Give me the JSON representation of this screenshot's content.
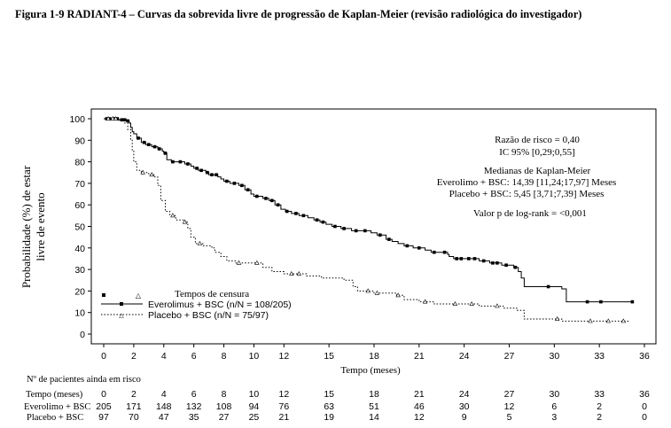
{
  "figure_title": "Figura 1-9 RADIANT-4 – Curvas da sobrevida livre de progressão de Kaplan-Meier (revisão radiológica do investigador)",
  "stats": {
    "hazard_ratio": "Razão de risco = 0,40",
    "ci": "IC 95% [0,29;0,55]",
    "medians_heading": "Medianas de Kaplan-Meier",
    "median_everolimus": "Everolimo + BSC: 14,39 [11,24;17,97] Meses",
    "median_placebo": "Placebo + BSC: 5,45 [3,71;7,39] Meses",
    "pvalue": "Valor p  de log-rank = <0,001"
  },
  "legend": {
    "censor_heading": "Tempos de censura",
    "everolimus": "Everolimus + BSC (n/N = 108/205)",
    "placebo": "Placebo + BSC (n/N = 75/97)"
  },
  "risk_table": {
    "heading": "Nº de pacientes ainda em risco",
    "time_label": "Tempo (meses)",
    "rows": [
      {
        "label": "Everolimo + BSC",
        "values": [
          "205",
          "171",
          "148",
          "132",
          "108",
          "94",
          "76",
          "63",
          "51",
          "46",
          "30",
          "12",
          "6",
          "2",
          "0"
        ]
      },
      {
        "label": "Placebo + BSC",
        "values": [
          "97",
          "70",
          "47",
          "35",
          "27",
          "25",
          "21",
          "19",
          "14",
          "12",
          "9",
          "5",
          "3",
          "2",
          "0"
        ]
      }
    ]
  },
  "chart_data": {
    "type": "line",
    "xlabel": "Tempo (meses)",
    "ylabel_line1": "Probabilidade (%) de estar",
    "ylabel_line2": "livre de evento",
    "xlim": [
      0,
      36
    ],
    "ylim": [
      0,
      100
    ],
    "x_ticks": [
      0,
      2,
      4,
      6,
      8,
      10,
      12,
      15,
      18,
      21,
      24,
      27,
      30,
      33,
      36
    ],
    "y_ticks": [
      0,
      10,
      20,
      30,
      40,
      50,
      60,
      70,
      80,
      90,
      100
    ],
    "series": [
      {
        "name": "Everolimus + BSC (n/N = 108/205)",
        "line_style": "solid",
        "color": "#000000",
        "points": [
          [
            0,
            100
          ],
          [
            0.6,
            100
          ],
          [
            1.0,
            99.5
          ],
          [
            1.5,
            99
          ],
          [
            1.7,
            98
          ],
          [
            1.8,
            96
          ],
          [
            1.9,
            94
          ],
          [
            2.0,
            93
          ],
          [
            2.2,
            91
          ],
          [
            2.5,
            89
          ],
          [
            2.8,
            88
          ],
          [
            3.2,
            87
          ],
          [
            3.6,
            86
          ],
          [
            3.9,
            85
          ],
          [
            4.0,
            84
          ],
          [
            4.2,
            81
          ],
          [
            4.5,
            80
          ],
          [
            5.0,
            80
          ],
          [
            5.4,
            79
          ],
          [
            5.8,
            78
          ],
          [
            6.0,
            77
          ],
          [
            6.3,
            76
          ],
          [
            6.8,
            75
          ],
          [
            7.0,
            74
          ],
          [
            7.6,
            73
          ],
          [
            7.8,
            72
          ],
          [
            8.0,
            71
          ],
          [
            8.4,
            70
          ],
          [
            9.0,
            69
          ],
          [
            9.4,
            67
          ],
          [
            9.8,
            65
          ],
          [
            10.0,
            64
          ],
          [
            10.6,
            63
          ],
          [
            11.0,
            62
          ],
          [
            11.4,
            60
          ],
          [
            11.8,
            58
          ],
          [
            12.1,
            57
          ],
          [
            12.5,
            56
          ],
          [
            13.0,
            55
          ],
          [
            13.6,
            54
          ],
          [
            14.0,
            53
          ],
          [
            14.4,
            52
          ],
          [
            14.8,
            51
          ],
          [
            15.2,
            50
          ],
          [
            15.8,
            49
          ],
          [
            16.5,
            48
          ],
          [
            17.2,
            48
          ],
          [
            17.8,
            47
          ],
          [
            18.2,
            46
          ],
          [
            18.8,
            44
          ],
          [
            19.2,
            43
          ],
          [
            19.6,
            42
          ],
          [
            20.0,
            41
          ],
          [
            20.6,
            40
          ],
          [
            21.4,
            39
          ],
          [
            21.8,
            38
          ],
          [
            22.5,
            38
          ],
          [
            22.9,
            37
          ],
          [
            23.0,
            36
          ],
          [
            23.3,
            35
          ],
          [
            24.0,
            35
          ],
          [
            25.0,
            34
          ],
          [
            25.7,
            33
          ],
          [
            26.5,
            32
          ],
          [
            27.3,
            31
          ],
          [
            27.6,
            29
          ],
          [
            27.8,
            26
          ],
          [
            28.0,
            22
          ],
          [
            29.0,
            22
          ],
          [
            30.0,
            22
          ],
          [
            30.5,
            21
          ],
          [
            30.8,
            15
          ],
          [
            33.0,
            15
          ],
          [
            35.2,
            15
          ]
        ],
        "censor_times": [
          0.2,
          0.4,
          0.7,
          0.9,
          1.2,
          1.4,
          1.6,
          2.3,
          2.7,
          3.0,
          3.4,
          3.7,
          4.1,
          4.6,
          5.1,
          5.6,
          6.2,
          6.5,
          6.9,
          7.2,
          7.5,
          8.2,
          8.7,
          9.2,
          9.6,
          10.2,
          10.8,
          11.2,
          11.6,
          12.2,
          12.8,
          13.3,
          14.2,
          14.6,
          15.4,
          16.0,
          16.8,
          17.4,
          18.4,
          19.0,
          20.2,
          21.0,
          22.0,
          22.7,
          23.5,
          23.8,
          24.3,
          24.7,
          25.3,
          25.9,
          26.2,
          26.8,
          27.4,
          29.6,
          32.2,
          33.1,
          35.2
        ]
      },
      {
        "name": "Placebo + BSC (n/N = 75/97)",
        "line_style": "dotted",
        "color": "#000000",
        "points": [
          [
            0,
            100
          ],
          [
            0.5,
            100
          ],
          [
            1.0,
            99
          ],
          [
            1.4,
            98
          ],
          [
            1.6,
            95
          ],
          [
            1.8,
            90
          ],
          [
            1.9,
            85
          ],
          [
            2.0,
            80
          ],
          [
            2.2,
            76
          ],
          [
            2.5,
            75
          ],
          [
            3.0,
            74
          ],
          [
            3.4,
            73
          ],
          [
            3.6,
            69
          ],
          [
            3.8,
            62
          ],
          [
            4.1,
            57
          ],
          [
            4.4,
            55
          ],
          [
            4.8,
            53
          ],
          [
            5.3,
            52
          ],
          [
            5.6,
            49
          ],
          [
            5.8,
            45
          ],
          [
            6.1,
            42
          ],
          [
            6.6,
            41
          ],
          [
            7.2,
            40
          ],
          [
            7.4,
            38
          ],
          [
            7.8,
            36
          ],
          [
            8.2,
            34
          ],
          [
            8.8,
            33
          ],
          [
            10.0,
            33
          ],
          [
            10.6,
            31
          ],
          [
            11.2,
            29
          ],
          [
            12.0,
            28
          ],
          [
            13.5,
            27
          ],
          [
            14.5,
            26
          ],
          [
            16.0,
            25
          ],
          [
            16.6,
            22
          ],
          [
            16.9,
            20
          ],
          [
            18.0,
            19
          ],
          [
            19.5,
            18
          ],
          [
            20.0,
            16
          ],
          [
            21.0,
            15
          ],
          [
            22.0,
            14
          ],
          [
            23.0,
            14
          ],
          [
            24.0,
            14
          ],
          [
            25.0,
            13
          ],
          [
            26.0,
            13
          ],
          [
            26.6,
            12
          ],
          [
            27.0,
            12
          ],
          [
            27.5,
            11
          ],
          [
            28.0,
            7
          ],
          [
            29.5,
            7
          ],
          [
            30.5,
            6
          ],
          [
            33.0,
            6
          ],
          [
            35.0,
            6
          ]
        ],
        "censor_times": [
          0.3,
          0.6,
          0.8,
          2.6,
          3.2,
          4.6,
          5.4,
          6.4,
          9.0,
          10.2,
          12.5,
          13.0,
          17.6,
          18.2,
          19.6,
          21.4,
          23.4,
          24.5,
          26.2,
          30.2,
          32.4,
          33.6,
          34.6
        ]
      }
    ]
  }
}
